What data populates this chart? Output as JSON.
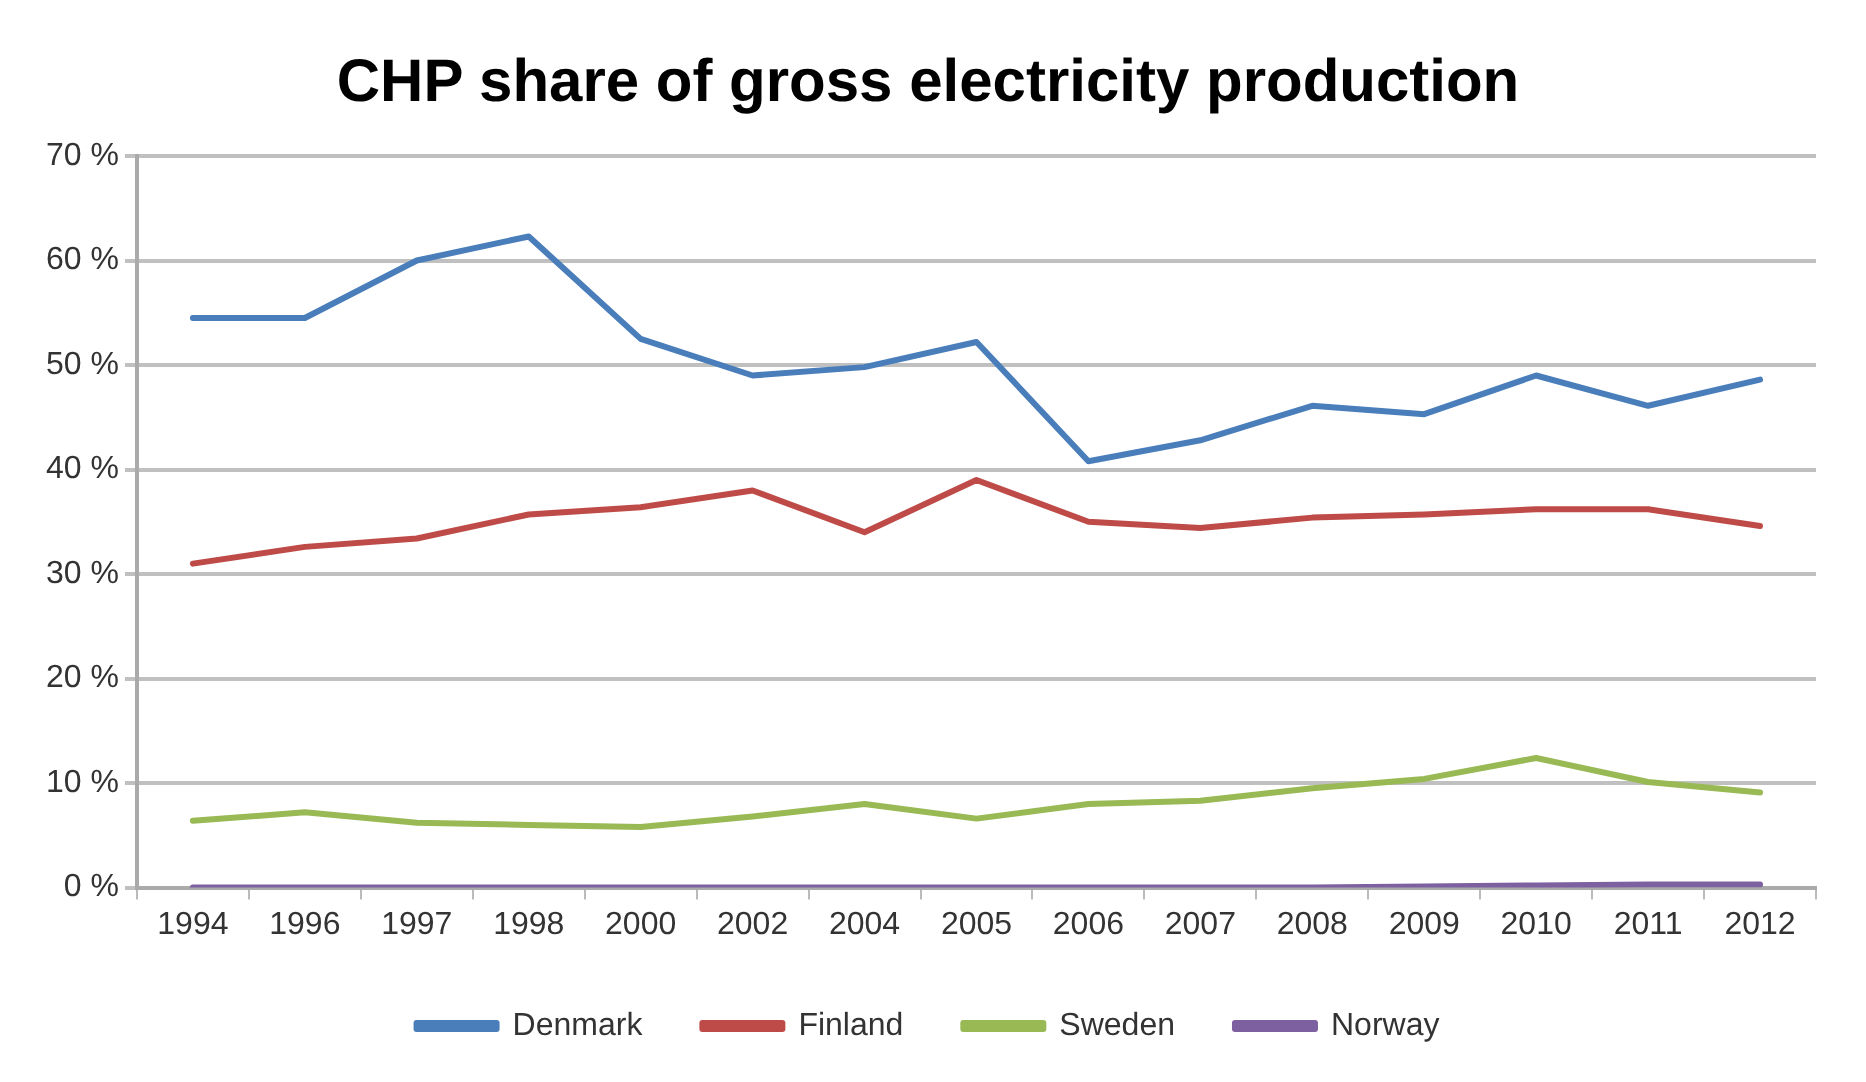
{
  "chart_data": {
    "type": "line",
    "title": "CHP share of gross electricity production",
    "categories": [
      "1994",
      "1996",
      "1997",
      "1998",
      "2000",
      "2002",
      "2004",
      "2005",
      "2006",
      "2007",
      "2008",
      "2009",
      "2010",
      "2011",
      "2012"
    ],
    "series": [
      {
        "name": "Denmark",
        "color": "#4a7ebb",
        "values": [
          54.5,
          54.5,
          60,
          62.3,
          52.5,
          49,
          49.8,
          52.2,
          40.8,
          42.8,
          46.1,
          45.3,
          49,
          46.1,
          48.6
        ]
      },
      {
        "name": "Finland",
        "color": "#be4b48",
        "values": [
          31,
          32.6,
          33.4,
          35.7,
          36.4,
          38,
          34,
          39,
          35,
          34.4,
          35.4,
          35.7,
          36.2,
          36.2,
          34.6
        ]
      },
      {
        "name": "Sweden",
        "color": "#98b954",
        "values": [
          6.4,
          7.2,
          6.2,
          6,
          5.8,
          6.8,
          8,
          6.6,
          8,
          8.3,
          9.5,
          10.4,
          12.4,
          10.1,
          9.1
        ]
      },
      {
        "name": "Norway",
        "color": "#7d60a0",
        "values": [
          0,
          0,
          0,
          0,
          0,
          0,
          0,
          0,
          0,
          0,
          0,
          0.1,
          0.2,
          0.3,
          0.3
        ]
      }
    ],
    "ylim": [
      0,
      70
    ],
    "yticks": [
      {
        "value": 0,
        "label": "0 %"
      },
      {
        "value": 10,
        "label": "10 %"
      },
      {
        "value": 20,
        "label": "20 %"
      },
      {
        "value": 30,
        "label": "30 %"
      },
      {
        "value": 40,
        "label": "40 %"
      },
      {
        "value": 50,
        "label": "50 %"
      },
      {
        "value": 60,
        "label": "60 %"
      },
      {
        "value": 70,
        "label": "70 %"
      }
    ],
    "grid": "y",
    "legend": "bottom",
    "marker": "none",
    "line_style": "solid"
  }
}
